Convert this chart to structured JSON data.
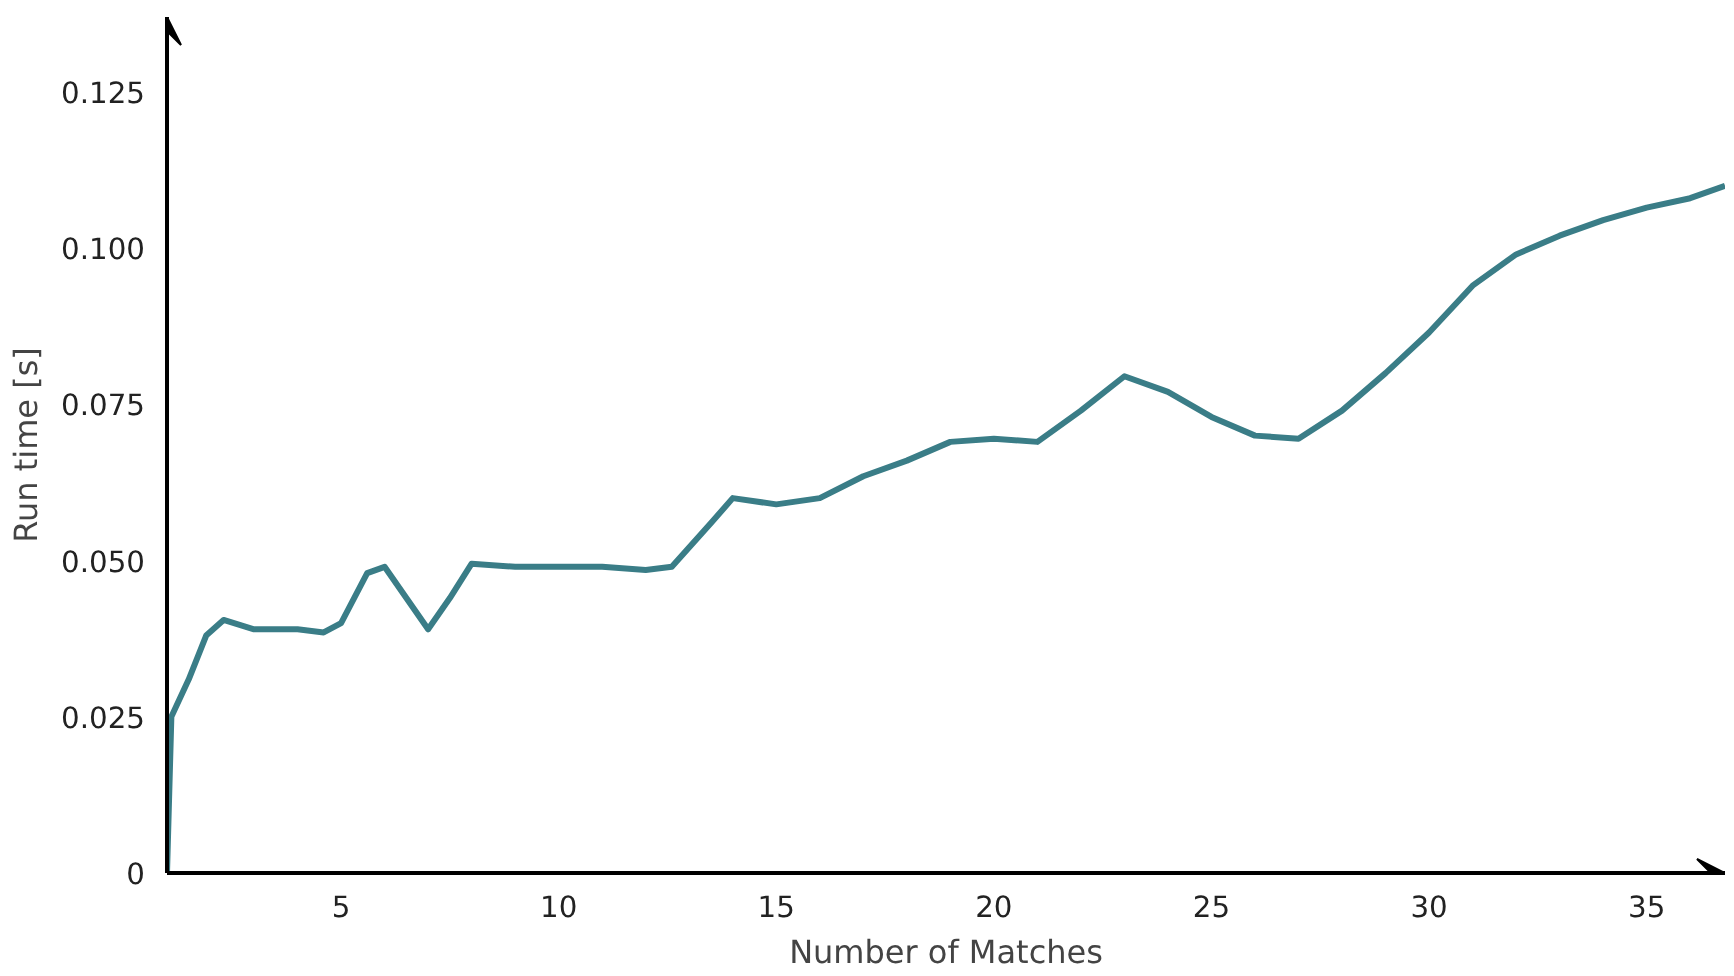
{
  "chart_data": {
    "type": "line",
    "xlabel": "Number of Matches",
    "ylabel": "Run time [s]",
    "x": [
      1,
      1.1,
      1.5,
      1.9,
      2.3,
      3,
      4,
      4.6,
      5,
      5.6,
      6,
      6.4,
      7,
      7.5,
      8,
      9,
      11,
      12,
      12.6,
      13.5,
      14,
      15,
      16,
      17,
      18,
      19,
      20,
      21,
      22,
      23,
      24,
      25,
      26,
      27,
      28,
      29,
      30,
      31,
      32,
      33,
      34,
      35,
      36,
      36.8
    ],
    "series": [
      {
        "color": "#3a7d87",
        "values": [
          0,
          0.025,
          0.031,
          0.038,
          0.0405,
          0.039,
          0.039,
          0.0385,
          0.04,
          0.048,
          0.049,
          0.045,
          0.039,
          0.044,
          0.0495,
          0.049,
          0.049,
          0.0485,
          0.049,
          0.056,
          0.06,
          0.059,
          0.06,
          0.0635,
          0.066,
          0.069,
          0.0695,
          0.069,
          0.074,
          0.0795,
          0.077,
          0.073,
          0.07,
          0.0695,
          0.074,
          0.08,
          0.0865,
          0.094,
          0.099,
          0.102,
          0.1045,
          0.1065,
          0.108,
          0.11
        ]
      }
    ],
    "xlim": [
      1,
      36.8
    ],
    "ylim": [
      0,
      0.137
    ],
    "xticks": [
      5,
      10,
      15,
      20,
      25,
      30,
      35
    ],
    "yticks": [
      0,
      {
        "value": 0.025,
        "label": "0.025"
      },
      {
        "value": 0.05,
        "label": "0.050"
      },
      {
        "value": 0.075,
        "label": "0.075"
      },
      {
        "value": 0.1,
        "label": "0.100"
      },
      {
        "value": 0.125,
        "label": "0.125"
      }
    ],
    "grid": false,
    "marker": "none",
    "line_style": "solid"
  }
}
